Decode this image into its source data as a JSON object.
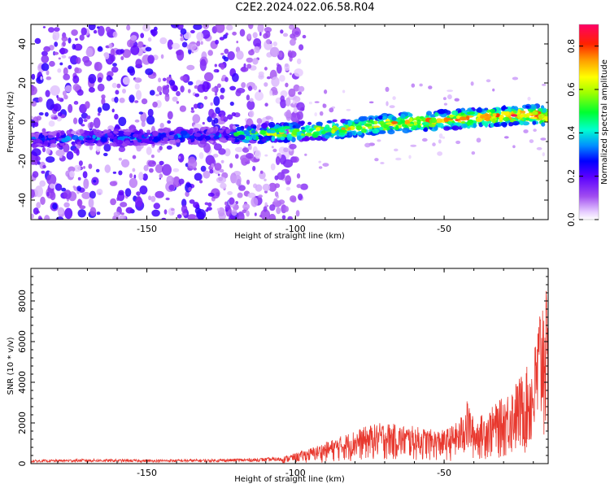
{
  "title": "C2E2.2024.022.06.58.R04",
  "chart_data": [
    {
      "type": "heatmap",
      "name": "spectrogram",
      "xlabel": "Height of straight line (km)",
      "ylabel": "Frequency (Hz)",
      "xlim": [
        -189,
        -15
      ],
      "ylim": [
        -50,
        50
      ],
      "xticks": [
        -150,
        -100,
        -50
      ],
      "yticks": [
        -40,
        -20,
        0,
        20,
        40
      ],
      "trace": {
        "x": [
          -189,
          -180,
          -170,
          -160,
          -150,
          -140,
          -130,
          -120,
          -110,
          -100,
          -90,
          -80,
          -70,
          -60,
          -50,
          -40,
          -30,
          -20,
          -16
        ],
        "freq": [
          -9,
          -9,
          -8,
          -8,
          -8,
          -7,
          -7,
          -6,
          -6,
          -5,
          -4,
          -3,
          -1,
          0,
          1,
          2,
          3,
          4,
          3
        ]
      },
      "colorbar": {
        "label": "Normalized spectral amplitude",
        "range": [
          0.0,
          0.9
        ],
        "ticks": [
          0.0,
          0.2,
          0.4,
          0.6,
          0.8
        ],
        "tick_labels": [
          "0.0",
          "0.2",
          "0.4",
          "0.6",
          "0.8"
        ]
      }
    },
    {
      "type": "line",
      "name": "snr",
      "xlabel": "Height of straight line (km)",
      "ylabel": "SNR (10 * v/v)",
      "xlim": [
        -189,
        -15
      ],
      "ylim": [
        0,
        9600
      ],
      "xticks": [
        -150,
        -100,
        -50
      ],
      "yticks": [
        0,
        2000,
        4000,
        6000,
        8000
      ],
      "color": "#e8382e",
      "envelope": {
        "x": [
          -189,
          -170,
          -150,
          -130,
          -115,
          -105,
          -100,
          -95,
          -90,
          -85,
          -80,
          -75,
          -70,
          -65,
          -60,
          -55,
          -50,
          -45,
          -42,
          -40,
          -35,
          -30,
          -25,
          -20,
          -18,
          -16,
          -15
        ],
        "y": [
          180,
          230,
          200,
          220,
          260,
          320,
          520,
          760,
          1050,
          1350,
          1650,
          1900,
          2050,
          1900,
          1850,
          1700,
          1650,
          2100,
          3200,
          2150,
          2650,
          3300,
          4200,
          5200,
          7800,
          9400,
          6800
        ]
      }
    }
  ]
}
